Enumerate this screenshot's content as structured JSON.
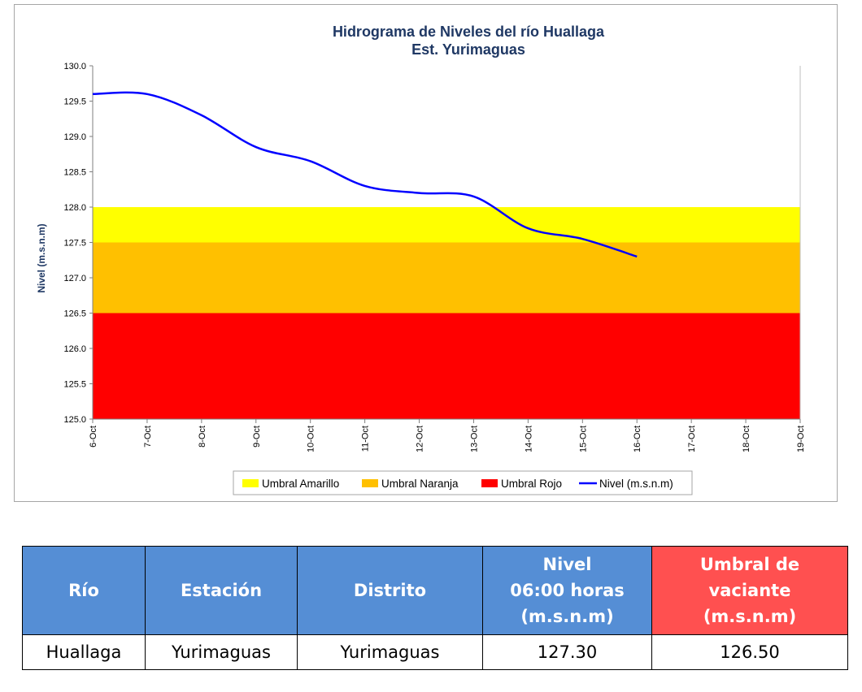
{
  "chart_data": {
    "type": "line",
    "title": "Hidrograma de Niveles del río Huallaga",
    "subtitle": "Est. Yurimaguas",
    "ylabel": "Nivel (m.s.n.m)",
    "xlabel": "",
    "ylim": [
      125.0,
      130.0
    ],
    "y_ticks": [
      "125.0",
      "125.5",
      "126.0",
      "126.5",
      "127.0",
      "127.5",
      "128.0",
      "128.5",
      "129.0",
      "129.5",
      "130.0"
    ],
    "x_ticks": [
      "6-Oct",
      "7-Oct",
      "8-Oct",
      "9-Oct",
      "10-Oct",
      "11-Oct",
      "12-Oct",
      "13-Oct",
      "14-Oct",
      "15-Oct",
      "16-Oct",
      "17-Oct",
      "18-Oct",
      "19-Oct"
    ],
    "grid": false,
    "legend_position": "bottom",
    "bands": [
      {
        "name": "Umbral Amarillo",
        "from": 127.5,
        "to": 128.0,
        "color": "#ffff00"
      },
      {
        "name": "Umbral Naranja",
        "from": 126.5,
        "to": 127.5,
        "color": "#ffc000"
      },
      {
        "name": "Umbral Rojo",
        "from": 125.0,
        "to": 126.5,
        "color": "#ff0000"
      }
    ],
    "series": [
      {
        "name": "Nivel (m.s.n.m)",
        "color": "#0000ff",
        "x": [
          "6-Oct",
          "7-Oct",
          "8-Oct",
          "9-Oct",
          "10-Oct",
          "11-Oct",
          "12-Oct",
          "13-Oct",
          "14-Oct",
          "15-Oct",
          "16-Oct"
        ],
        "values": [
          129.6,
          129.6,
          129.3,
          128.85,
          128.65,
          128.3,
          128.2,
          128.15,
          127.7,
          127.55,
          127.3
        ]
      }
    ]
  },
  "legend": {
    "items": [
      {
        "label": "Umbral Amarillo",
        "color": "#ffff00"
      },
      {
        "label": "Umbral Naranja",
        "color": "#ffc000"
      },
      {
        "label": "Umbral Rojo",
        "color": "#ff0000"
      },
      {
        "label": "Nivel (m.s.n.m)",
        "color": "#0000ff"
      }
    ]
  },
  "table": {
    "header": {
      "rio": "Río",
      "estacion": "Estación",
      "distrito": "Distrito",
      "nivel_line1": "Nivel",
      "nivel_line2": "06:00 horas",
      "nivel_line3": "(m.s.n.m)",
      "umbral_line1": "Umbral de",
      "umbral_line2": "vaciante",
      "umbral_line3": "(m.s.n.m)"
    },
    "row": {
      "rio": "Huallaga",
      "estacion": "Yurimaguas",
      "distrito": "Yurimaguas",
      "nivel": "127.30",
      "umbral": "126.50"
    },
    "colors": {
      "header_blue": "#558ed5",
      "header_red": "#ff5050"
    }
  }
}
